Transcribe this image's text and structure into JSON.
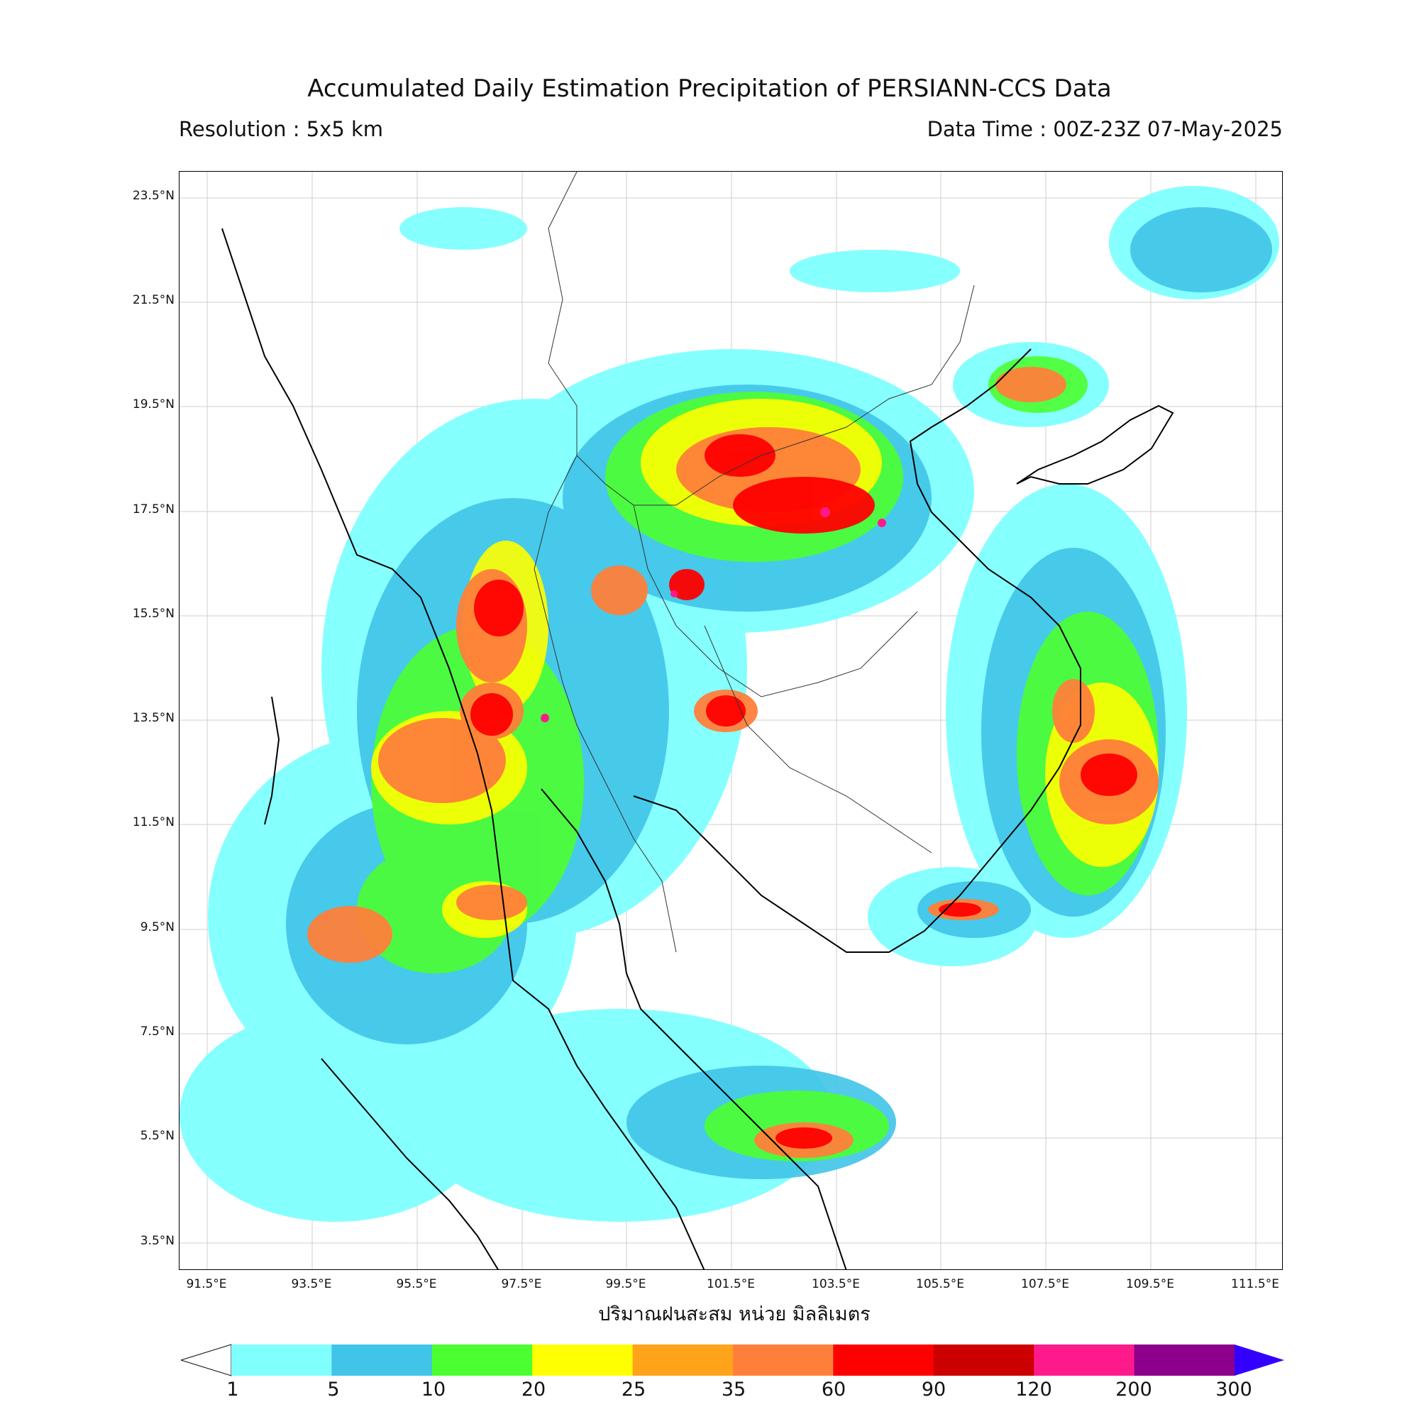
{
  "title": "Accumulated Daily Estimation Precipitation of PERSIANN-CCS Data",
  "resolution": "Resolution : 5x5 km",
  "data_time": "Data Time : 00Z-23Z 07-May-2025",
  "xaxis_title": "ปริมาณฝนสะสม หน่วย มิลลิเมตร",
  "lat_labels": [
    "23.5°N",
    "21.5°N",
    "19.5°N",
    "17.5°N",
    "15.5°N",
    "13.5°N",
    "11.5°N",
    "9.5°N",
    "7.5°N",
    "5.5°N",
    "3.5°N"
  ],
  "lon_labels": [
    "91.5°E",
    "93.5°E",
    "95.5°E",
    "97.5°E",
    "99.5°E",
    "101.5°E",
    "103.5°E",
    "105.5°E",
    "107.5°E",
    "109.5°E",
    "111.5°E"
  ],
  "colorbar": {
    "ticks": [
      "1",
      "5",
      "10",
      "20",
      "25",
      "35",
      "60",
      "90",
      "120",
      "200",
      "300"
    ],
    "colors": [
      "#80ffff",
      "#40c4e8",
      "#4cff30",
      "#ffff00",
      "#ffa31a",
      "#ff7f3a",
      "#ff0000",
      "#cc0000",
      "#ff1a8c",
      "#8c008c"
    ],
    "extend_high_color": "#3300ff",
    "extend_low_color": "#ffffff"
  }
}
